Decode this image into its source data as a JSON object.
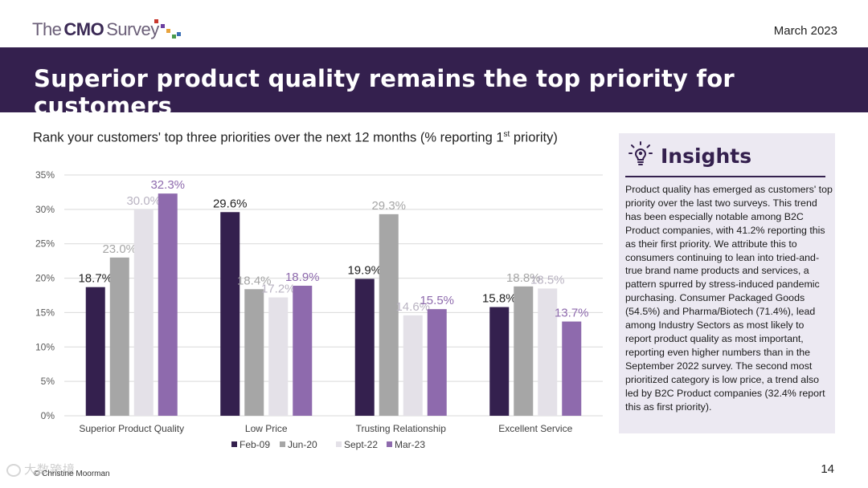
{
  "header": {
    "logo": {
      "the": "The",
      "cmo": "CMO",
      "survey": "Survey"
    },
    "date": "March 2023"
  },
  "banner": {
    "title": "Superior product quality remains the top priority for customers"
  },
  "question": {
    "text": "Rank your customers' top three priorities over the next 12 months (% reporting 1",
    "superscript": "st",
    "suffix": " priority)"
  },
  "colors": {
    "banner": "#34204e",
    "feb09": "#34204e",
    "jun20": "#a6a6a6",
    "sept22": "#e4e1e8",
    "mar23": "#8e6aad",
    "insights_bg": "#ece9f2"
  },
  "chart_data": {
    "type": "bar",
    "title": "",
    "xlabel": "",
    "ylabel": "",
    "ylim": [
      0,
      35
    ],
    "yticks": [
      "0%",
      "5%",
      "10%",
      "15%",
      "20%",
      "25%",
      "30%",
      "35%"
    ],
    "ytick_values": [
      0,
      5,
      10,
      15,
      20,
      25,
      30,
      35
    ],
    "grid": true,
    "legend_position": "bottom",
    "categories": [
      "Superior Product Quality",
      "Low Price",
      "Trusting Relationship",
      "Excellent Service"
    ],
    "series": [
      {
        "name": "Feb-09",
        "color": "#34204e",
        "label_color": "#1f1f1f",
        "values": [
          18.7,
          29.6,
          19.9,
          15.8
        ],
        "labels": [
          "18.7%",
          "29.6%",
          "19.9%",
          "15.8%"
        ]
      },
      {
        "name": "Jun-20",
        "color": "#a6a6a6",
        "label_color": "#a6a6a6",
        "values": [
          23.0,
          18.4,
          29.3,
          18.8
        ],
        "labels": [
          "23.0%",
          "18.4%",
          "29.3%",
          "18.8%"
        ]
      },
      {
        "name": "Sept-22",
        "color": "#e4e1e8",
        "label_color": "#b9b3c2",
        "values": [
          30.0,
          17.2,
          14.6,
          18.5
        ],
        "labels": [
          "30.0%",
          "17.2%",
          "14.6%",
          "18.5%"
        ]
      },
      {
        "name": "Mar-23",
        "color": "#8e6aad",
        "label_color": "#8e6aad",
        "values": [
          32.3,
          18.9,
          15.5,
          13.7
        ],
        "labels": [
          "32.3%",
          "18.9%",
          "15.5%",
          "13.7%"
        ]
      }
    ]
  },
  "insights": {
    "heading": "Insights",
    "icon": "lightbulb-icon",
    "body": "Product quality has emerged as customers' top priority over the last two surveys. This trend has been especially notable among B2C Product companies, with 41.2% reporting this as their first priority. We attribute this to consumers continuing to lean into tried-and-true brand name products and services, a pattern spurred by stress-induced pandemic purchasing. Consumer Packaged Goods (54.5%) and Pharma/Biotech (71.4%), lead among Industry Sectors as most likely to report product quality as most important, reporting even higher numbers than in the September 2022 survey. The second most prioritized category is low price, a trend also led by B2C Product companies (32.4% report this as first priority)."
  },
  "footer": {
    "page_number": "14",
    "copyright": "© Christine Moorman",
    "watermark": "大数跨境"
  }
}
